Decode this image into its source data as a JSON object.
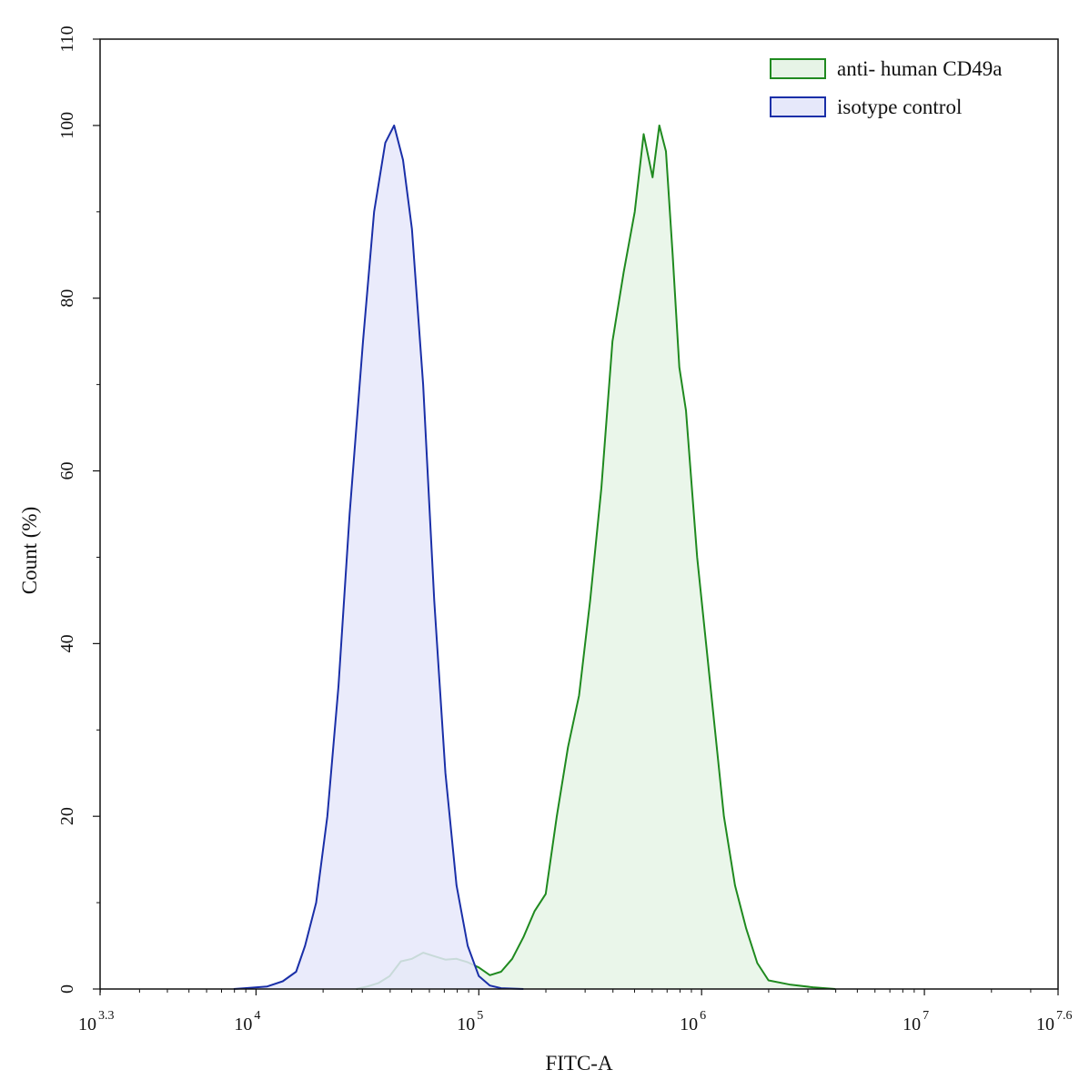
{
  "chart_data": {
    "type": "area",
    "xlabel": "FITC-A",
    "ylabel": "Count  (%)",
    "x_scale": "log10",
    "xlim": [
      3.3,
      7.6
    ],
    "ylim": [
      0,
      110
    ],
    "x_ticks": [
      {
        "value": 3.3,
        "base": "10",
        "exp": "3.3"
      },
      {
        "value": 4,
        "base": "10",
        "exp": "4"
      },
      {
        "value": 5,
        "base": "10",
        "exp": "5"
      },
      {
        "value": 6,
        "base": "10",
        "exp": "6"
      },
      {
        "value": 7,
        "base": "10",
        "exp": "7"
      },
      {
        "value": 7.6,
        "base": "10",
        "exp": "7.6"
      }
    ],
    "y_ticks": [
      "0",
      "20",
      "40",
      "60",
      "80",
      "100",
      "110"
    ],
    "legend_position": "top-right",
    "series": [
      {
        "name": "anti- human CD49a",
        "stroke": "#1f8a1f",
        "fill": "#e6f4e6",
        "points": [
          [
            4.45,
            0
          ],
          [
            4.5,
            0.3
          ],
          [
            4.55,
            0.7
          ],
          [
            4.6,
            1.5
          ],
          [
            4.65,
            3.2
          ],
          [
            4.7,
            3.5
          ],
          [
            4.75,
            4.2
          ],
          [
            4.8,
            3.8
          ],
          [
            4.85,
            3.4
          ],
          [
            4.9,
            3.5
          ],
          [
            4.95,
            3.1
          ],
          [
            5.0,
            2.5
          ],
          [
            5.05,
            1.6
          ],
          [
            5.1,
            2.0
          ],
          [
            5.15,
            3.5
          ],
          [
            5.2,
            6.0
          ],
          [
            5.25,
            9.0
          ],
          [
            5.3,
            11.0
          ],
          [
            5.35,
            20.0
          ],
          [
            5.4,
            28.0
          ],
          [
            5.45,
            34.0
          ],
          [
            5.5,
            45.0
          ],
          [
            5.55,
            58.0
          ],
          [
            5.6,
            75.0
          ],
          [
            5.65,
            83.0
          ],
          [
            5.7,
            90.0
          ],
          [
            5.74,
            99.0
          ],
          [
            5.78,
            94.0
          ],
          [
            5.81,
            100.0
          ],
          [
            5.84,
            97.0
          ],
          [
            5.87,
            85.0
          ],
          [
            5.9,
            72.0
          ],
          [
            5.93,
            67.0
          ],
          [
            5.98,
            50.0
          ],
          [
            6.02,
            40.0
          ],
          [
            6.06,
            30.0
          ],
          [
            6.1,
            20.0
          ],
          [
            6.15,
            12.0
          ],
          [
            6.2,
            7.0
          ],
          [
            6.25,
            3.0
          ],
          [
            6.3,
            1.0
          ],
          [
            6.4,
            0.5
          ],
          [
            6.5,
            0.2
          ],
          [
            6.6,
            0
          ]
        ]
      },
      {
        "name": "isotype control",
        "stroke": "#1a2fa8",
        "fill": "#e6e8fa",
        "points": [
          [
            3.9,
            0
          ],
          [
            3.95,
            0.1
          ],
          [
            4.05,
            0.3
          ],
          [
            4.12,
            0.9
          ],
          [
            4.18,
            2.0
          ],
          [
            4.22,
            5.0
          ],
          [
            4.27,
            10.0
          ],
          [
            4.32,
            20.0
          ],
          [
            4.37,
            35.0
          ],
          [
            4.42,
            55.0
          ],
          [
            4.48,
            75.0
          ],
          [
            4.53,
            90.0
          ],
          [
            4.58,
            98.0
          ],
          [
            4.62,
            100.0
          ],
          [
            4.66,
            96.0
          ],
          [
            4.7,
            88.0
          ],
          [
            4.75,
            70.0
          ],
          [
            4.8,
            45.0
          ],
          [
            4.85,
            25.0
          ],
          [
            4.9,
            12.0
          ],
          [
            4.95,
            5.0
          ],
          [
            5.0,
            1.5
          ],
          [
            5.05,
            0.4
          ],
          [
            5.1,
            0.1
          ],
          [
            5.2,
            0
          ]
        ]
      }
    ]
  }
}
